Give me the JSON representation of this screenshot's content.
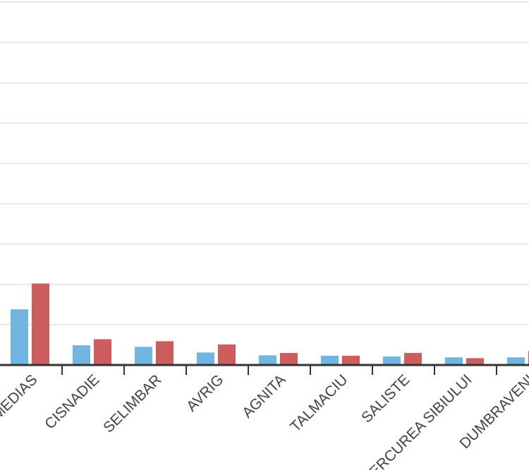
{
  "chart_data": {
    "type": "bar",
    "categories": [
      "MEDIAS",
      "CISNADIE",
      "SELIMBAR",
      "AVRIG",
      "AGNITA",
      "TALMACIU",
      "SALISTE",
      "MIERCUREA SIBIULUI",
      "DUMBRAVENI"
    ],
    "series": [
      {
        "color": "#72b4e2",
        "values": [
          1.38,
          0.49,
          0.45,
          0.31,
          0.24,
          0.23,
          0.21,
          0.19,
          0.19
        ]
      },
      {
        "color": "#cd5c5c",
        "values": [
          2.02,
          0.64,
          0.59,
          0.51,
          0.3,
          0.23,
          0.3,
          0.17,
          0.35
        ]
      }
    ],
    "ylim": [
      0,
      9
    ],
    "yticks": [
      0,
      1,
      2,
      3,
      4,
      5,
      6,
      7,
      8,
      9
    ],
    "grid": true
  }
}
